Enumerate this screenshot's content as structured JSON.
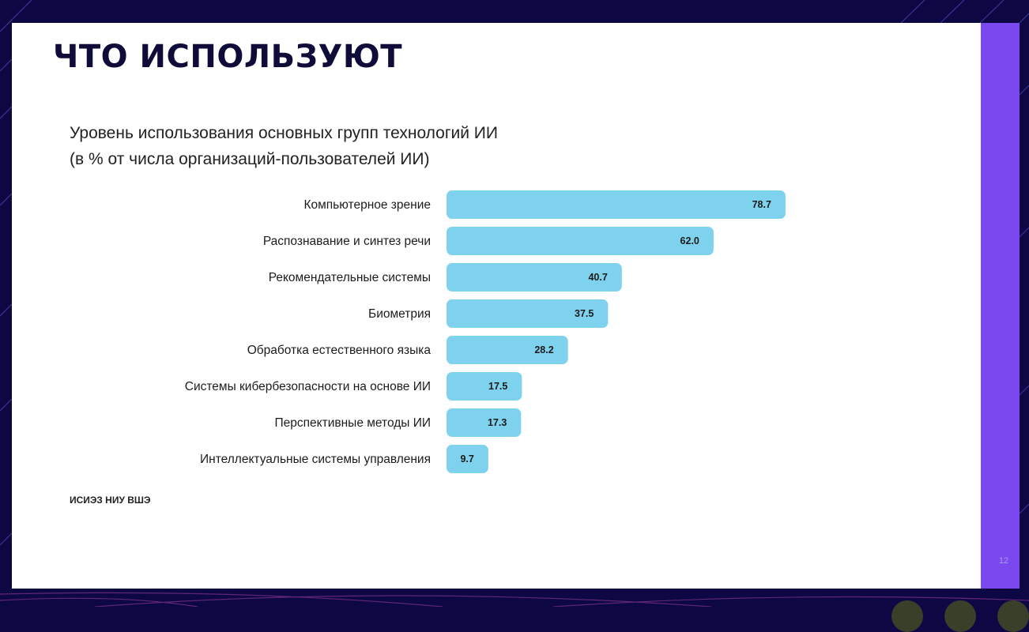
{
  "slide": {
    "title": "ЧТО ИСПОЛЬЗУЮТ",
    "page_number": "12",
    "source": "ИСИЭЗ НИУ ВШЭ",
    "colors": {
      "background": "#0d0744",
      "accent": "#7b47ef",
      "bar": "#7fd2ee",
      "title": "#0f0c3a"
    }
  },
  "chart_data": {
    "type": "bar",
    "orientation": "horizontal",
    "title_lines": [
      "Уровень использования основных групп технологий ИИ",
      "(в % от числа организаций-пользователей ИИ)"
    ],
    "categories": [
      "Компьютерное зрение",
      "Распознавание и синтез речи",
      "Рекомендательные системы",
      "Биометрия",
      "Обработка естественного языка",
      "Системы кибербезопасности на основе ИИ",
      "Перспективные методы ИИ",
      "Интеллектуальные системы управления"
    ],
    "values": [
      78.7,
      62.0,
      40.7,
      37.5,
      28.2,
      17.5,
      17.3,
      9.7
    ],
    "value_labels": [
      "78.7",
      "62.0",
      "40.7",
      "37.5",
      "28.2",
      "17.5",
      "17.3",
      "9.7"
    ],
    "xlabel": "",
    "ylabel": "",
    "grid": false,
    "legend": "none"
  }
}
